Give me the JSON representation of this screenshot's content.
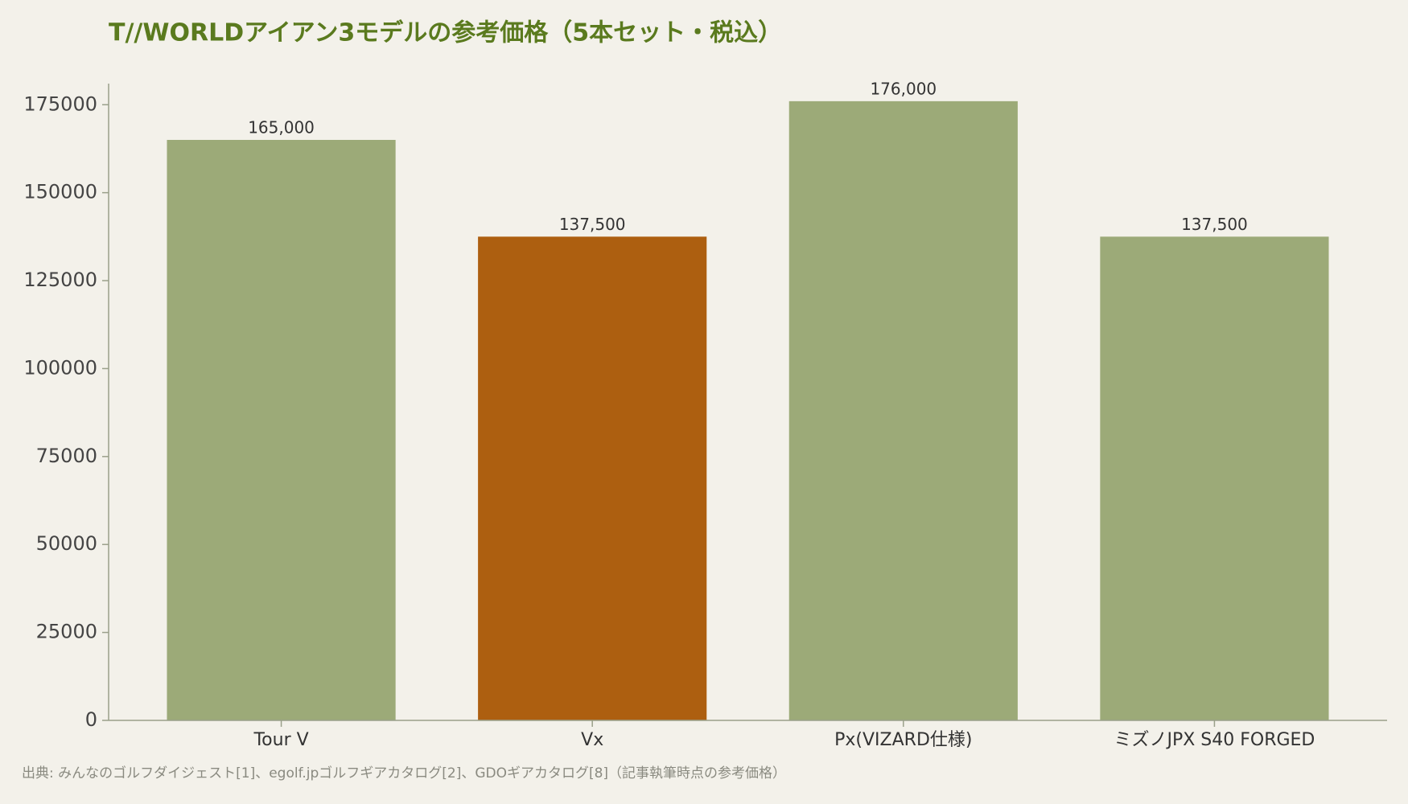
{
  "chart_data": {
    "type": "bar",
    "title": "T//WORLDアイアン3モデルの参考価格（5本セット・税込）",
    "categories": [
      "Tour V",
      "Vx",
      "Px(VIZARD仕様)",
      "ミズノJPX S40 FORGED"
    ],
    "values": [
      165000,
      137500,
      176000,
      137500
    ],
    "value_labels": [
      "165,000",
      "137,500",
      "176,000",
      "137,500"
    ],
    "colors": [
      "#9caa78",
      "#ad5f10",
      "#9caa78",
      "#9caa78"
    ],
    "ylim": [
      0,
      181000
    ],
    "yticks": [
      0,
      25000,
      50000,
      75000,
      100000,
      125000,
      150000,
      175000
    ],
    "grid": false,
    "source": "出典: みんなのゴルフダイジェスト[1]、egolf.jpゴルフギアカタログ[2]、GDOギアカタログ[8]（記事執筆時点の参考価格）"
  }
}
